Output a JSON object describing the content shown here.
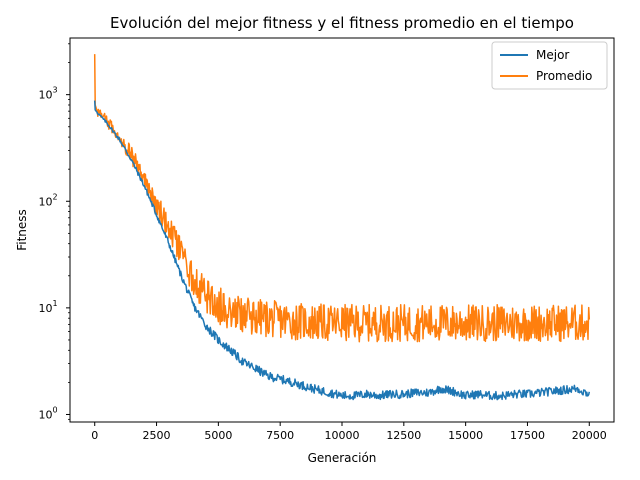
{
  "chart_data": {
    "type": "line",
    "title": "Evolución del mejor fitness y el fitness promedio en el tiempo",
    "xlabel": "Generación",
    "ylabel": "Fitness",
    "xlim": [
      -1000,
      21000
    ],
    "ylim": [
      0.85,
      3400
    ],
    "yscale": "log",
    "x_ticks": [
      0,
      2500,
      5000,
      7500,
      10000,
      12500,
      15000,
      17500,
      20000
    ],
    "x_tick_labels": [
      "0",
      "2500",
      "5000",
      "7500",
      "10000",
      "12500",
      "15000",
      "17500",
      "20000"
    ],
    "y_ticks": [
      {
        "value": 1,
        "base": "10",
        "exp": "0"
      },
      {
        "value": 10,
        "base": "10",
        "exp": "1"
      },
      {
        "value": 100,
        "base": "10",
        "exp": "2"
      },
      {
        "value": 1000,
        "base": "10",
        "exp": "3"
      }
    ],
    "grid": false,
    "legend_position": "top-right",
    "series": [
      {
        "name": "Mejor",
        "color": "#1f77b4",
        "x": [
          0,
          20,
          100,
          500,
          1000,
          1500,
          2000,
          2500,
          3000,
          3500,
          4000,
          4500,
          5000,
          5500,
          6000,
          6500,
          7000,
          7500,
          8000,
          8500,
          9000,
          9500,
          10000,
          10500,
          11000,
          11500,
          12000,
          12500,
          13000,
          13500,
          14000,
          14500,
          15000,
          15500,
          16000,
          16500,
          17000,
          17500,
          18000,
          18500,
          19000,
          19500,
          20000
        ],
        "values": [
          880,
          720,
          680,
          540,
          380,
          240,
          140,
          75,
          40,
          20,
          10.5,
          6.8,
          5.0,
          4.0,
          3.1,
          2.7,
          2.3,
          2.15,
          2.0,
          1.85,
          1.7,
          1.6,
          1.5,
          1.5,
          1.55,
          1.5,
          1.55,
          1.55,
          1.6,
          1.6,
          1.75,
          1.65,
          1.5,
          1.55,
          1.5,
          1.5,
          1.55,
          1.55,
          1.6,
          1.65,
          1.7,
          1.75,
          1.55
        ],
        "noise": 0.08
      },
      {
        "name": "Promedio",
        "color": "#ff7f0e",
        "x": [
          0,
          20,
          100,
          500,
          1000,
          1500,
          2000,
          2500,
          3000,
          3500,
          4000,
          4500,
          5000,
          5500,
          6000,
          6500,
          7000,
          7500,
          8000,
          8500,
          9000,
          9500,
          10000,
          11000,
          12000,
          13000,
          14000,
          15000,
          16000,
          17000,
          18000,
          19000,
          20000
        ],
        "values": [
          2400,
          800,
          700,
          560,
          410,
          270,
          160,
          92,
          56,
          32,
          18,
          13,
          10.5,
          9.4,
          8.6,
          8.2,
          7.9,
          7.7,
          7.5,
          7.4,
          7.3,
          7.2,
          7.2,
          7.2,
          7.2,
          7.2,
          7.2,
          7.2,
          7.2,
          7.2,
          7.2,
          7.2,
          7.2
        ],
        "noise": 0.35
      }
    ]
  }
}
